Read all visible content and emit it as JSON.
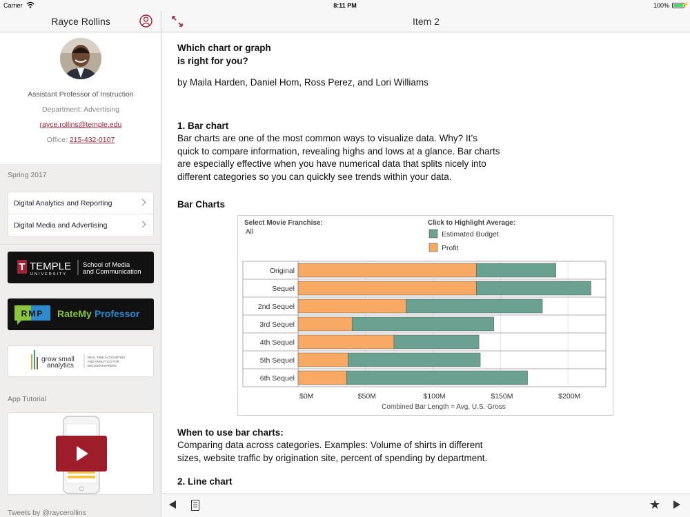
{
  "status": {
    "carrier": "Carrier",
    "time": "8:11 PM",
    "battery": "100%"
  },
  "sidebar": {
    "name": "Rayce Rollins",
    "title": "Assistant Professor of Instruction",
    "department": "Department: Advertising",
    "email": "rayce.rollins@temple.edu",
    "office_label": "Office:",
    "office_phone": "215-432-0107",
    "term": "Spring 2017",
    "courses": [
      {
        "label": "Digital Analytics and Reporting"
      },
      {
        "label": "Digital Media and Advertising"
      }
    ],
    "temple_logo": {
      "name": "TEMPLE",
      "sub": "UNIVERSITY",
      "school_line1": "School of Media",
      "school_line2": "and Communication"
    },
    "rmp_logo": {
      "badge": "RMP",
      "text1": "RateMy",
      "text2": "Professor"
    },
    "gsa_logo": {
      "line1": "grow small",
      "line2": "analytics",
      "tag1": "REAL TIME ACCOUNTING",
      "tag2": "AND ANALYTICS FOR",
      "tag3": "DECISION MAKERS"
    },
    "tutorial_label": "App Tutorial",
    "tweets_label": "Tweets by @raycerollins"
  },
  "main": {
    "title": "Item 2",
    "heading_line1": "Which chart or graph",
    "heading_line2": "is right for you?",
    "authors": "by Maila Harden, Daniel Hom, Ross Perez, and Lori Williams",
    "section1_title": "1. Bar chart",
    "section1_body": "Bar charts are one of the most common ways to visualize data. Why? It’s quick to compare information, revealing highs and lows at a glance. Bar charts are especially effective when you have numerical data that splits nicely into different categories so you can quickly see trends within your data.",
    "bar_charts_heading": "Bar Charts",
    "when_heading": "When to use bar charts:",
    "when_body": "Comparing data across categories. Examples: Volume of shirts in different sizes, website traffic by origination site, percent of spending by department.",
    "section2_title": "2. Line chart"
  },
  "chart_data": {
    "type": "bar",
    "stacked": true,
    "orientation": "horizontal",
    "filter_label": "Select Movie Franchise:",
    "filter_value": "All",
    "legend_title": "Click to Highlight Average:",
    "categories": [
      "Original",
      "Sequel",
      "2nd Sequel",
      "3rd Sequel",
      "4th Sequel",
      "5th Sequel",
      "6th Sequel"
    ],
    "series": [
      {
        "name": "Profit",
        "color": "#f8a964",
        "values": [
          132,
          132,
          80,
          40,
          71,
          37,
          36
        ]
      },
      {
        "name": "Estimated Budget",
        "color": "#6aa191",
        "values": [
          59,
          85,
          101,
          105,
          63,
          98,
          134
        ]
      }
    ],
    "xlabel": "Combined Bar Length = Avg. U.S. Gross",
    "xticks": [
      "$0M",
      "$50M",
      "$100M",
      "$150M",
      "$200M"
    ],
    "xtick_values": [
      0,
      50,
      100,
      150,
      200
    ],
    "xlim": [
      0,
      228
    ]
  }
}
